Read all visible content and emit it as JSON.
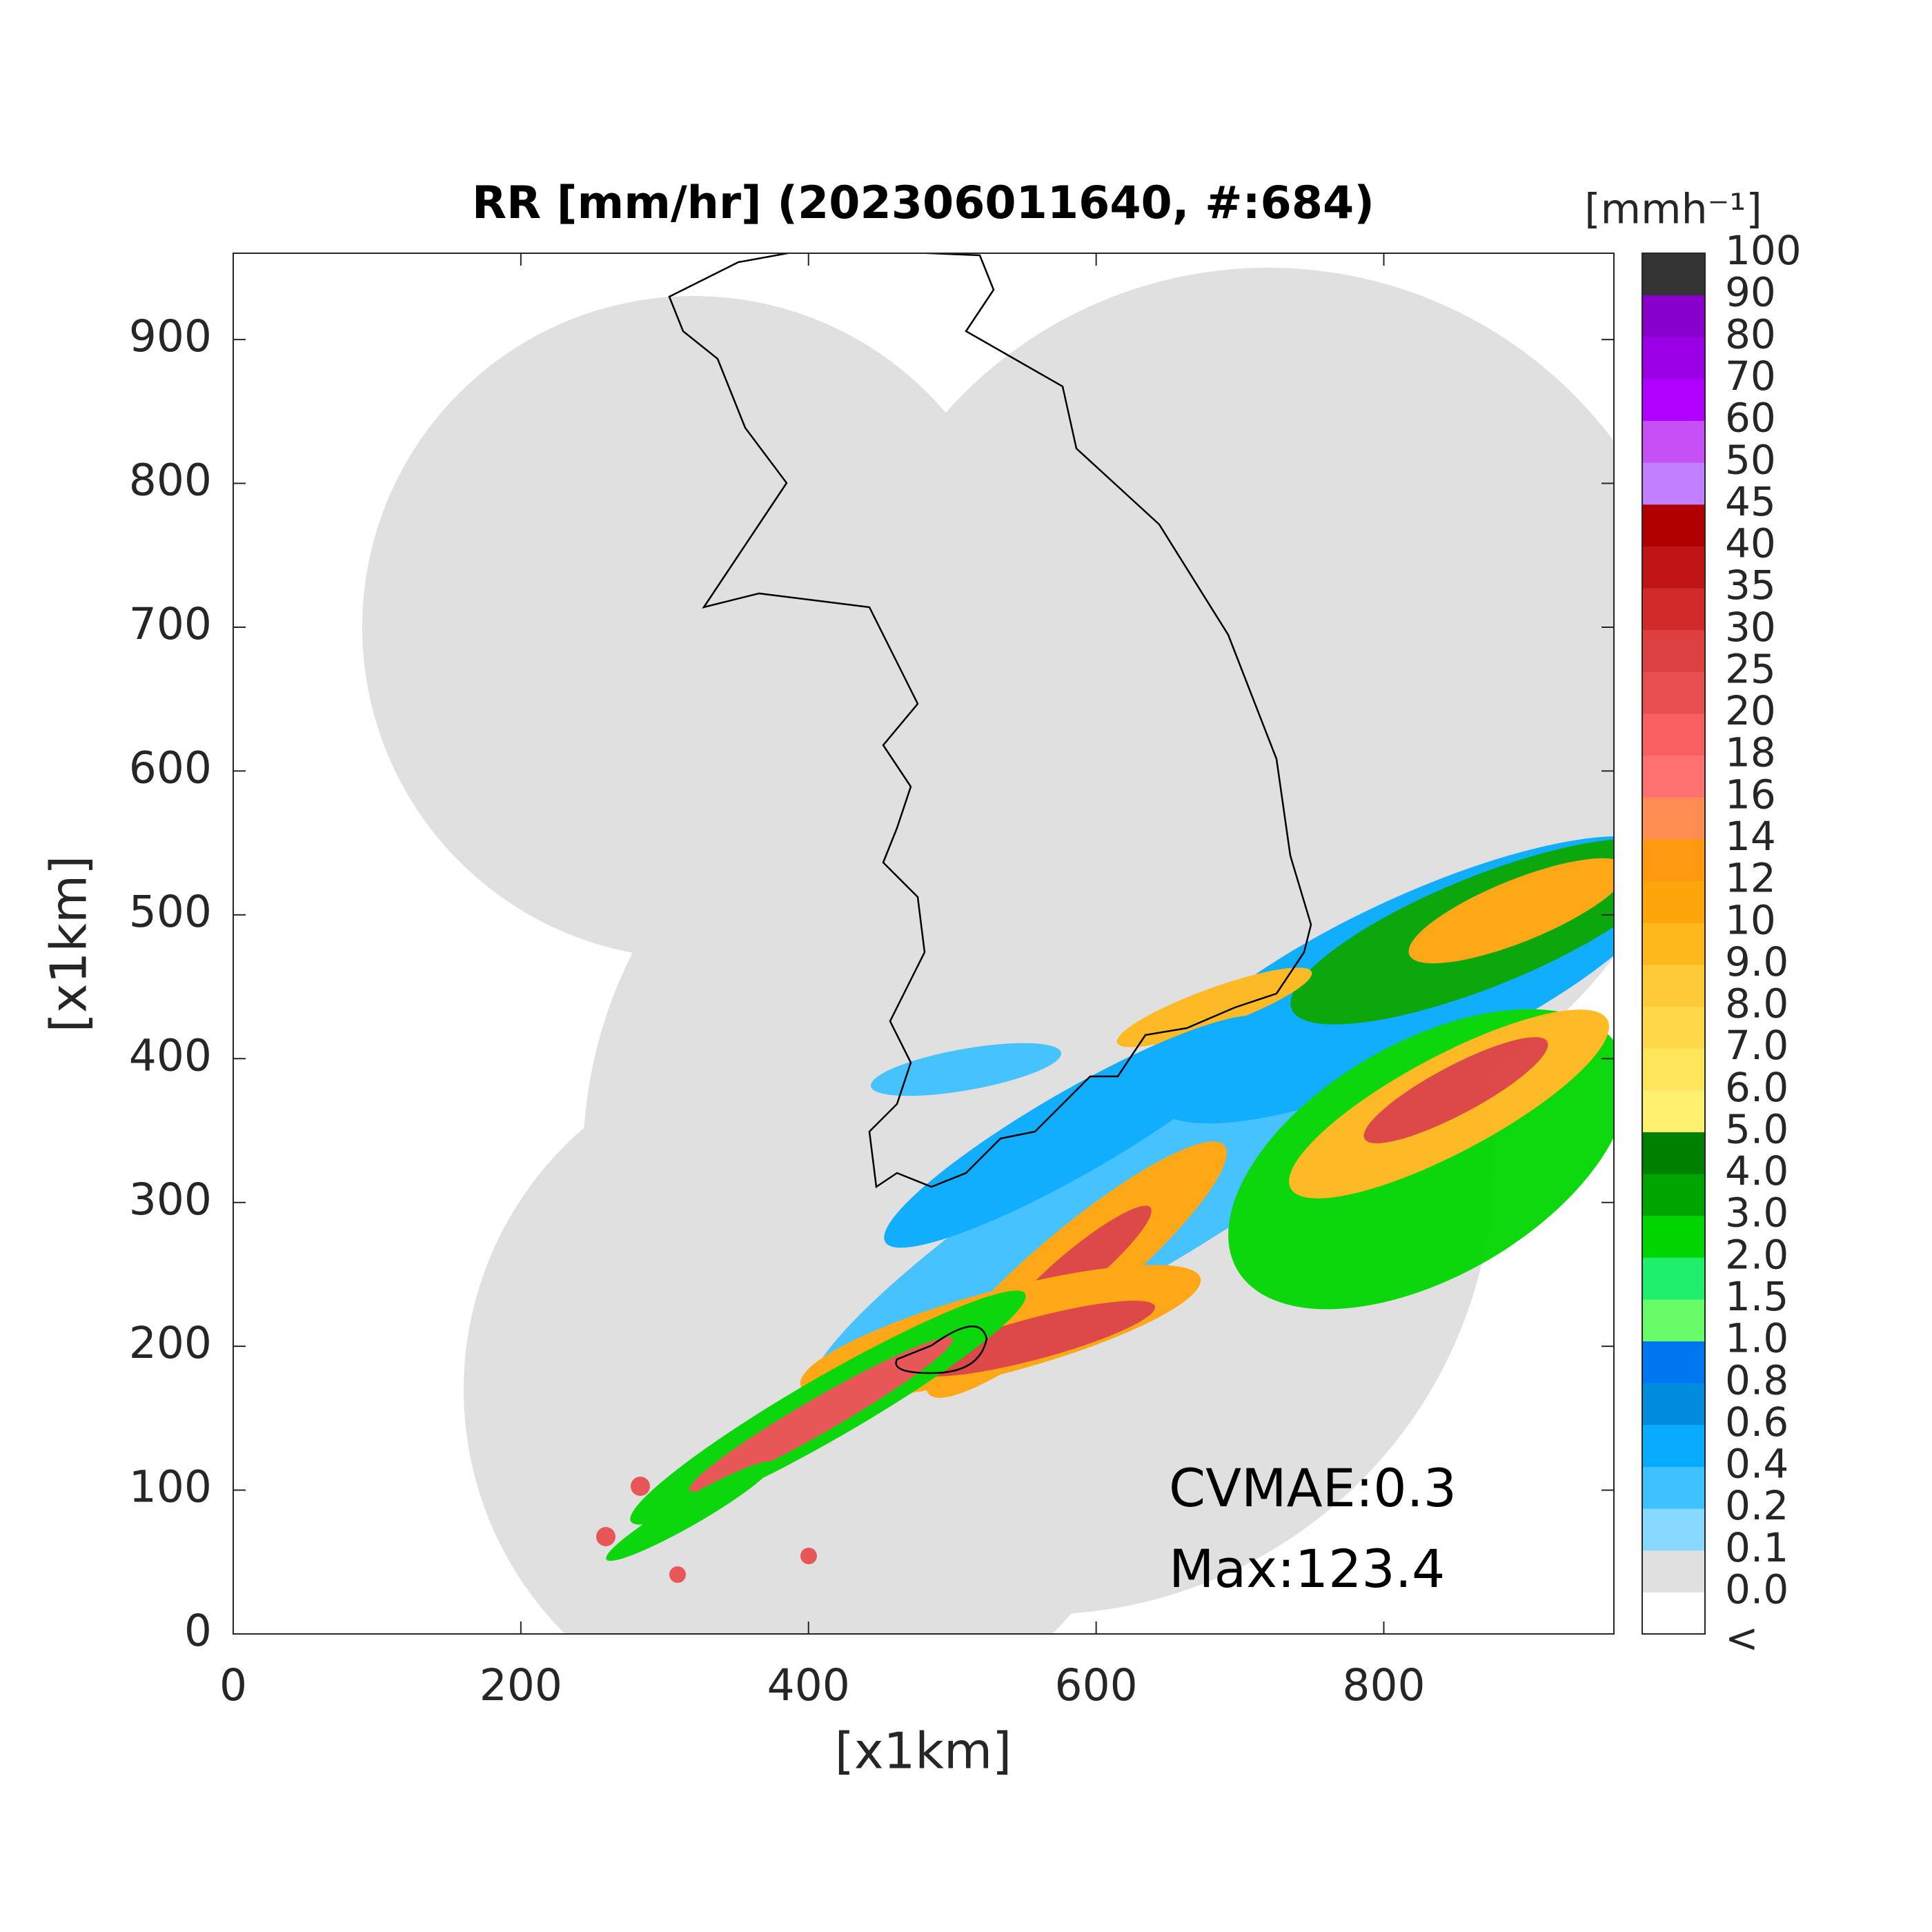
{
  "map": {
    "title": "RR [mm/hr] (202306011640, #:684)",
    "xlabel": "[x1km]",
    "ylabel": "[x1km]",
    "xlim": [
      0,
      960
    ],
    "ylim": [
      0,
      960
    ],
    "xticks": [
      0,
      200,
      400,
      600,
      800
    ],
    "yticks": [
      0,
      100,
      200,
      300,
      400,
      500,
      600,
      700,
      800,
      900
    ],
    "annotations": [
      "CVMAE:0.3",
      "Max:123.4"
    ],
    "colorbar": {
      "unit": "[mmh⁻¹]",
      "labels": [
        "<",
        "0.0",
        "0.1",
        "0.2",
        "0.4",
        "0.6",
        "0.8",
        "1.0",
        "1.5",
        "2.0",
        "3.0",
        "4.0",
        "5.0",
        "6.0",
        "7.0",
        "8.0",
        "9.0",
        "10",
        "12",
        "14",
        "16",
        "18",
        "20",
        "25",
        "30",
        "35",
        "40",
        "45",
        "50",
        "60",
        "70",
        "80",
        "90",
        "100"
      ],
      "colors": [
        "#ffffff",
        "#e0e0e0",
        "#87d9ff",
        "#3ec1ff",
        "#07abff",
        "#008dde",
        "#0077f0",
        "#69fc69",
        "#1ef06e",
        "#00d500",
        "#00a400",
        "#008000",
        "#fff06e",
        "#ffe55a",
        "#ffd84a",
        "#ffca3a",
        "#ffb81b",
        "#ffa50c",
        "#ff9a10",
        "#ff8c50",
        "#ff7070",
        "#f86060",
        "#e85050",
        "#dd4040",
        "#d22a2a",
        "#c01515",
        "#b00000",
        "#c080ff",
        "#c64ff5",
        "#b000ff",
        "#9900e6",
        "#8800cc",
        "#333333"
      ]
    }
  }
}
